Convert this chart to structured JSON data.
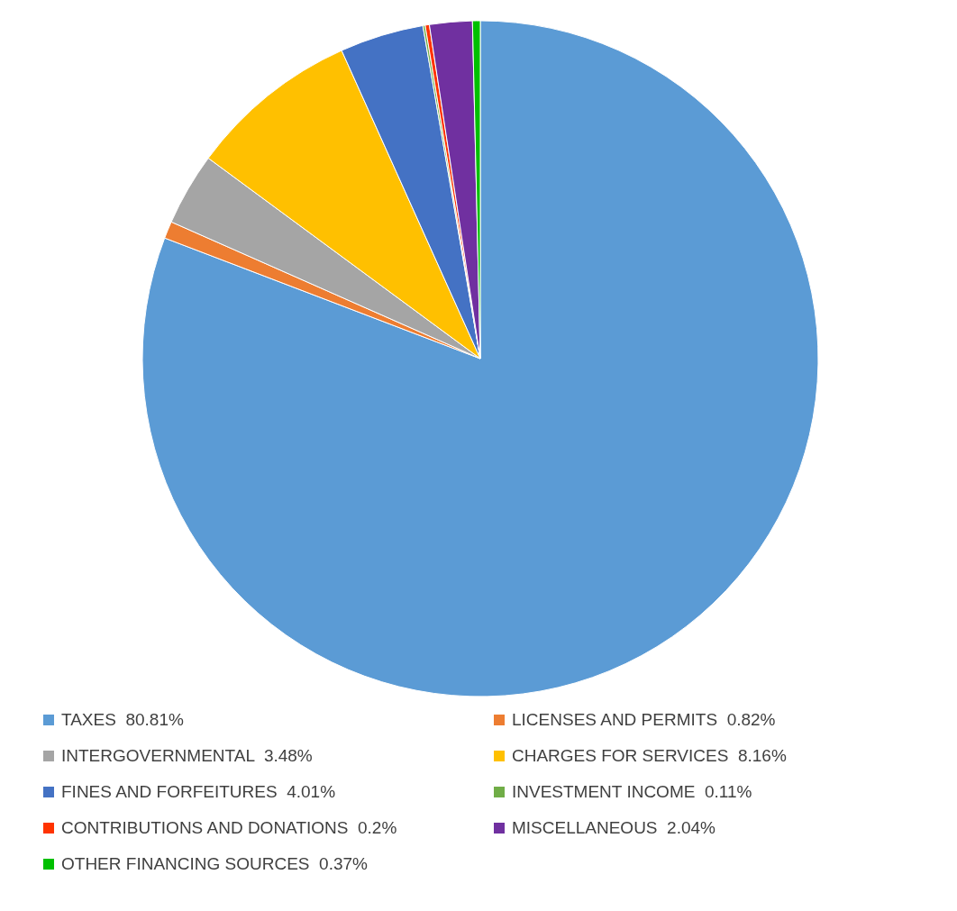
{
  "chart_data": {
    "type": "pie",
    "categories": [
      "TAXES",
      "LICENSES AND PERMITS",
      "INTERGOVERNMENTAL",
      "CHARGES FOR SERVICES",
      "FINES AND FORFEITURES",
      "INVESTMENT INCOME",
      "CONTRIBUTIONS AND DONATIONS",
      "MISCELLANEOUS",
      "OTHER FINANCING SOURCES"
    ],
    "values": [
      80.81,
      0.82,
      3.48,
      8.16,
      4.01,
      0.11,
      0.2,
      2.04,
      0.37
    ],
    "value_labels": [
      "80.81%",
      "0.82%",
      "3.48%",
      "8.16%",
      "4.01%",
      "0.11%",
      "0.2%",
      "2.04%",
      "0.37%"
    ],
    "colors": [
      "#5b9bd5",
      "#ed7d31",
      "#a5a5a5",
      "#ffc000",
      "#4472c4",
      "#70ad47",
      "#ff3300",
      "#7030a0",
      "#00c000"
    ],
    "legend": "bottom"
  }
}
